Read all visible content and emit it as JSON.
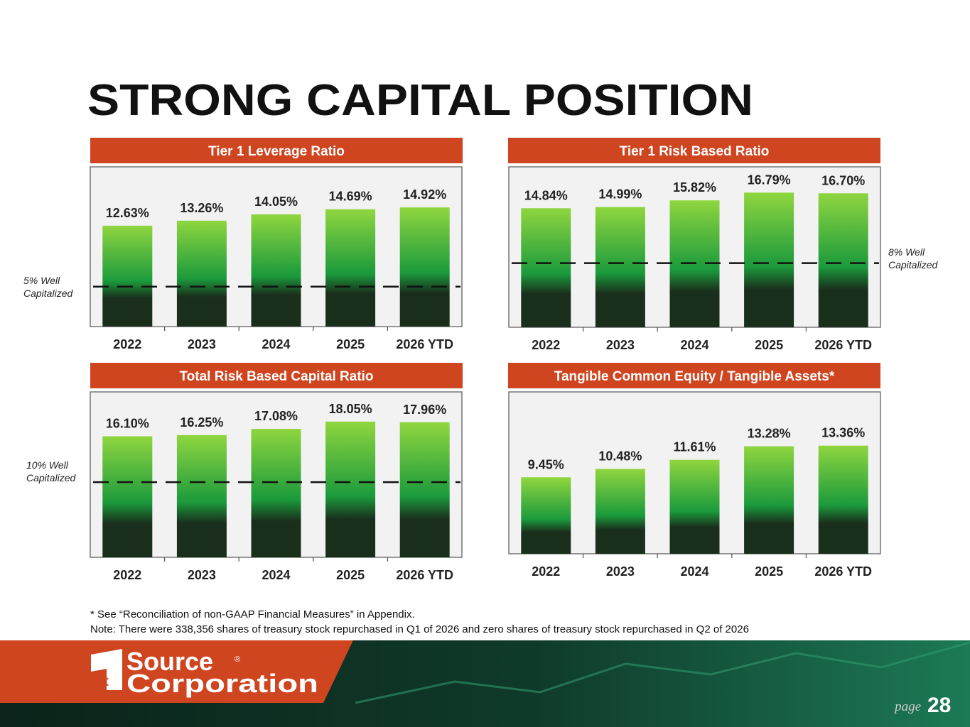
{
  "title": "STRONG CAPITAL POSITION",
  "chart_data": [
    {
      "type": "bar",
      "title": "Tier 1 Leverage Ratio",
      "categories": [
        "2022",
        "2023",
        "2024",
        "2025",
        "2026 YTD"
      ],
      "values": [
        12.63,
        13.26,
        14.05,
        14.69,
        14.92
      ],
      "value_labels": [
        "12.63%",
        "13.26%",
        "14.05%",
        "14.69%",
        "14.92%"
      ],
      "ylim": [
        0,
        20
      ],
      "threshold": 5,
      "threshold_label": [
        "5% Well",
        "Capitalized"
      ],
      "color_top": "#8fd63f",
      "color_mid": "#1b9a3c",
      "color_bottom": "#1a2e1c"
    },
    {
      "type": "bar",
      "title": "Tier 1 Risk Based Ratio",
      "categories": [
        "2022",
        "2023",
        "2024",
        "2025",
        "2026 YTD"
      ],
      "values": [
        14.84,
        14.99,
        15.82,
        16.79,
        16.7
      ],
      "value_labels": [
        "14.84%",
        "14.99%",
        "15.82%",
        "16.79%",
        "16.70%"
      ],
      "ylim": [
        0,
        20
      ],
      "threshold": 8,
      "threshold_label": [
        "8% Well",
        "Capitalized"
      ],
      "color_top": "#8fd63f",
      "color_mid": "#1b9a3c",
      "color_bottom": "#1a2e1c"
    },
    {
      "type": "bar",
      "title": "Total Risk Based Capital Ratio",
      "categories": [
        "2022",
        "2023",
        "2024",
        "2025",
        "2026 YTD"
      ],
      "values": [
        16.1,
        16.25,
        17.08,
        18.05,
        17.96
      ],
      "value_labels": [
        "16.10%",
        "16.25%",
        "17.08%",
        "18.05%",
        "17.96%"
      ],
      "ylim": [
        0,
        22
      ],
      "threshold": 10,
      "threshold_label": [
        "10% Well",
        "Capitalized"
      ],
      "color_top": "#8fd63f",
      "color_mid": "#1b9a3c",
      "color_bottom": "#1a2e1c"
    },
    {
      "type": "bar",
      "title": "Tangible Common Equity / Tangible Assets*",
      "categories": [
        "2022",
        "2023",
        "2024",
        "2025",
        "2026 YTD"
      ],
      "values": [
        9.45,
        10.48,
        11.61,
        13.28,
        13.36
      ],
      "value_labels": [
        "9.45%",
        "10.48%",
        "11.61%",
        "13.28%",
        "13.36%"
      ],
      "ylim": [
        0,
        20
      ],
      "color_top": "#8fd63f",
      "color_mid": "#1b9a3c",
      "color_bottom": "#1a2e1c"
    }
  ],
  "footnotes": [
    "* See “Reconciliation of non-GAAP Financial Measures” in Appendix.",
    "Note: There were 338,356 shares of treasury stock repurchased in Q1 of 2026 and zero shares of treasury stock repurchased in Q2 of 2026"
  ],
  "logo": {
    "numeral": "1",
    "suffix": "st",
    "top": "Source",
    "bottom": "Corporation",
    "mark": "®"
  },
  "page_label": "page",
  "page_number": "28"
}
